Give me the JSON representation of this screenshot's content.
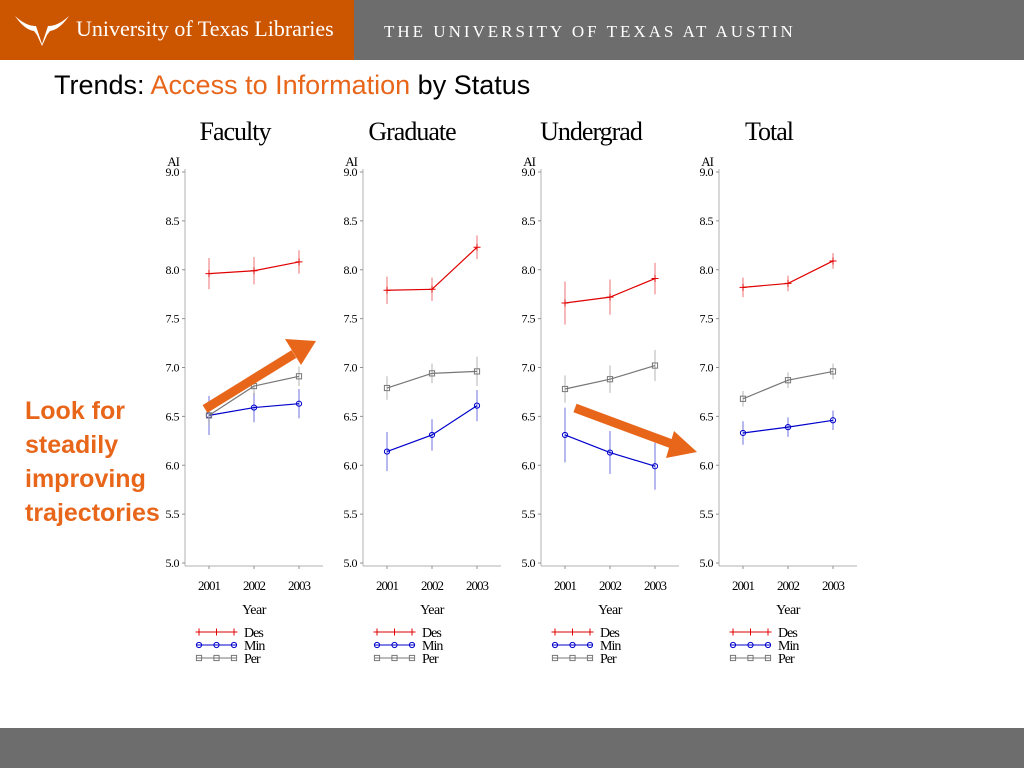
{
  "header": {
    "library_name": "University of Texas Libraries",
    "university_name": "THE UNIVERSITY OF TEXAS AT AUSTIN",
    "logo_icon": "longhorn-icon"
  },
  "slide": {
    "title_prefix": "Trends: ",
    "title_highlight": "Access to Information",
    "title_suffix": " by Status"
  },
  "callout": {
    "text": "Look for steadily improving trajectories"
  },
  "colors": {
    "brand_orange": "#cc5500",
    "accent_orange": "#e8661a",
    "header_gray": "#6d6d6d",
    "series_des": "#e00000",
    "series_min": "#0000cc",
    "series_per": "#777777"
  },
  "chart_data": [
    {
      "type": "line",
      "title": "Faculty",
      "ylabel": "AI",
      "xlabel": "Year",
      "x": [
        "2001",
        "2002",
        "2003"
      ],
      "ylim": [
        5.0,
        9.0
      ],
      "yticks": [
        "5.0",
        "5.5",
        "6.0",
        "6.5",
        "7.0",
        "7.5",
        "8.0",
        "8.5",
        "9.0"
      ],
      "series": [
        {
          "name": "Des",
          "values": [
            7.96,
            7.99,
            8.08
          ],
          "err": [
            0.16,
            0.14,
            0.12
          ]
        },
        {
          "name": "Min",
          "values": [
            6.51,
            6.59,
            6.63
          ],
          "err": [
            0.2,
            0.15,
            0.15
          ]
        },
        {
          "name": "Per",
          "values": [
            6.51,
            6.81,
            6.91
          ],
          "err": [
            0.1,
            0.1,
            0.1
          ]
        }
      ]
    },
    {
      "type": "line",
      "title": "Graduate",
      "ylabel": "AI",
      "xlabel": "Year",
      "x": [
        "2001",
        "2002",
        "2003"
      ],
      "ylim": [
        5.0,
        9.0
      ],
      "yticks": [
        "5.0",
        "5.5",
        "6.0",
        "6.5",
        "7.0",
        "7.5",
        "8.0",
        "8.5",
        "9.0"
      ],
      "series": [
        {
          "name": "Des",
          "values": [
            7.79,
            7.8,
            8.23
          ],
          "err": [
            0.14,
            0.12,
            0.12
          ]
        },
        {
          "name": "Min",
          "values": [
            6.14,
            6.31,
            6.61
          ],
          "err": [
            0.2,
            0.16,
            0.16
          ]
        },
        {
          "name": "Per",
          "values": [
            6.79,
            6.94,
            6.96
          ],
          "err": [
            0.12,
            0.1,
            0.15
          ]
        }
      ]
    },
    {
      "type": "line",
      "title": "Undergrad",
      "ylabel": "AI",
      "xlabel": "Year",
      "x": [
        "2001",
        "2002",
        "2003"
      ],
      "ylim": [
        5.0,
        9.0
      ],
      "yticks": [
        "5.0",
        "5.5",
        "6.0",
        "6.5",
        "7.0",
        "7.5",
        "8.0",
        "8.5",
        "9.0"
      ],
      "series": [
        {
          "name": "Des",
          "values": [
            7.66,
            7.72,
            7.91
          ],
          "err": [
            0.22,
            0.18,
            0.16
          ]
        },
        {
          "name": "Min",
          "values": [
            6.31,
            6.13,
            5.99
          ],
          "err": [
            0.28,
            0.22,
            0.24
          ]
        },
        {
          "name": "Per",
          "values": [
            6.78,
            6.88,
            7.02
          ],
          "err": [
            0.14,
            0.14,
            0.16
          ]
        }
      ]
    },
    {
      "type": "line",
      "title": "Total",
      "ylabel": "AI",
      "xlabel": "Year",
      "x": [
        "2001",
        "2002",
        "2003"
      ],
      "ylim": [
        5.0,
        9.0
      ],
      "yticks": [
        "5.0",
        "5.5",
        "6.0",
        "6.5",
        "7.0",
        "7.5",
        "8.0",
        "8.5",
        "9.0"
      ],
      "series": [
        {
          "name": "Des",
          "values": [
            7.82,
            7.86,
            8.09
          ],
          "err": [
            0.1,
            0.08,
            0.08
          ]
        },
        {
          "name": "Min",
          "values": [
            6.33,
            6.39,
            6.46
          ],
          "err": [
            0.12,
            0.1,
            0.1
          ]
        },
        {
          "name": "Per",
          "values": [
            6.68,
            6.87,
            6.96
          ],
          "err": [
            0.08,
            0.08,
            0.08
          ]
        }
      ]
    }
  ]
}
